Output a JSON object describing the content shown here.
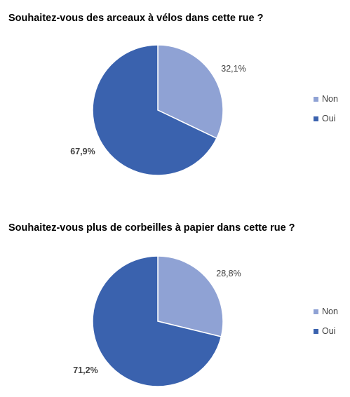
{
  "chart_data": [
    {
      "type": "pie",
      "title": "Souhaitez-vous des arceaux à vélos dans cette rue ?",
      "categories": [
        "Non",
        "Oui"
      ],
      "values": [
        32.1,
        67.9
      ],
      "data_labels": [
        "32,1%",
        "67,9%"
      ],
      "colors": [
        "#8FA2D4",
        "#3A62AE"
      ],
      "legend": {
        "placement": "right",
        "entries": [
          "Non",
          "Oui"
        ]
      }
    },
    {
      "type": "pie",
      "title": "Souhaitez-vous plus de corbeilles à papier dans cette rue ?",
      "categories": [
        "Non",
        "Oui"
      ],
      "values": [
        28.8,
        71.2
      ],
      "data_labels": [
        "28,8%",
        "71,2%"
      ],
      "colors": [
        "#8FA2D4",
        "#3A62AE"
      ],
      "legend": {
        "placement": "right",
        "entries": [
          "Non",
          "Oui"
        ]
      }
    }
  ]
}
